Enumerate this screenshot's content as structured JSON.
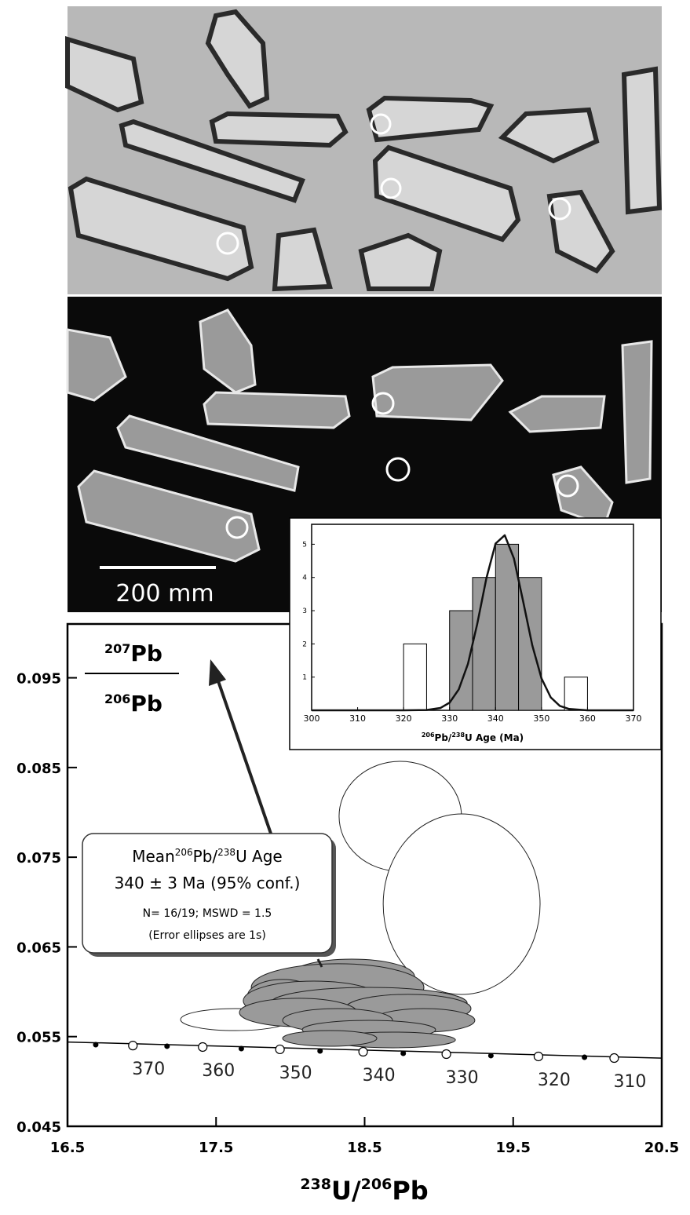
{
  "figure": {
    "scale_bar_label": "200 mm"
  },
  "chart_data": [
    {
      "type": "concordia",
      "y_label": {
        "top_mass": "207",
        "top_element": "Pb",
        "bottom_mass": "206",
        "bottom_element": "Pb"
      },
      "x_label": {
        "mass1": "238",
        "part1": "U/",
        "mass2": "206",
        "part2": "Pb"
      },
      "xlim": [
        16.5,
        20.5
      ],
      "xticks": [
        16.5,
        17.5,
        18.5,
        19.5,
        20.5
      ],
      "ylim": [
        0.045,
        0.101
      ],
      "yticks": [
        0.045,
        0.055,
        0.065,
        0.075,
        0.085,
        0.095
      ],
      "concordia": {
        "x": [
          16.5,
          20.5
        ],
        "y": [
          0.0544,
          0.0526
        ],
        "color": "#000000"
      },
      "age_markers": {
        "x": [
          16.94,
          17.41,
          17.93,
          18.49,
          19.05,
          19.67,
          20.18
        ],
        "y": [
          0.054,
          0.05384,
          0.05358,
          0.05331,
          0.05305,
          0.05279,
          0.05261
        ],
        "labels": [
          "370",
          "360",
          "350",
          "340",
          "330",
          "320",
          "310"
        ]
      },
      "minor_markers": {
        "x": [
          16.69,
          17.17,
          17.67,
          18.2,
          18.76,
          19.35,
          19.98
        ],
        "y": [
          0.0541,
          0.05393,
          0.05366,
          0.0534,
          0.05314,
          0.05288,
          0.0527
        ]
      },
      "ellipses": [
        {
          "x": 18.74,
          "y": 0.07956,
          "rx": 0.412,
          "ry": 0.00613,
          "fill": "#ffffff"
        },
        {
          "x": 19.153,
          "y": 0.06976,
          "rx": 0.528,
          "ry": 0.01006,
          "fill": "#ffffff"
        },
        {
          "x": 17.631,
          "y": 0.0569,
          "rx": 0.37,
          "ry": 0.00123,
          "fill": "#ffffff"
        },
        {
          "x": 18.413,
          "y": 0.06171,
          "rx": 0.423,
          "ry": 0.00193,
          "fill": "#9a9a9a"
        },
        {
          "x": 18.318,
          "y": 0.06049,
          "rx": 0.581,
          "ry": 0.00263,
          "fill": "#9a9a9a"
        },
        {
          "x": 17.948,
          "y": 0.05944,
          "rx": 0.238,
          "ry": 0.00193,
          "fill": "#9a9a9a"
        },
        {
          "x": 18.159,
          "y": 0.059,
          "rx": 0.476,
          "ry": 0.00219,
          "fill": "#9a9a9a"
        },
        {
          "x": 18.529,
          "y": 0.05874,
          "rx": 0.661,
          "ry": 0.00175,
          "fill": "#9a9a9a"
        },
        {
          "x": 18.793,
          "y": 0.05813,
          "rx": 0.423,
          "ry": 0.00158,
          "fill": "#9a9a9a"
        },
        {
          "x": 18.053,
          "y": 0.05769,
          "rx": 0.396,
          "ry": 0.00158,
          "fill": "#9a9a9a"
        },
        {
          "x": 18.899,
          "y": 0.05681,
          "rx": 0.343,
          "ry": 0.00131,
          "fill": "#9a9a9a"
        },
        {
          "x": 18.318,
          "y": 0.05681,
          "rx": 0.37,
          "ry": 0.00131,
          "fill": "#9a9a9a"
        },
        {
          "x": 18.529,
          "y": 0.05576,
          "rx": 0.449,
          "ry": 0.00105,
          "fill": "#9a9a9a"
        },
        {
          "x": 18.688,
          "y": 0.05463,
          "rx": 0.423,
          "ry": 0.000875,
          "fill": "#9a9a9a"
        },
        {
          "x": 18.265,
          "y": 0.0548,
          "rx": 0.317,
          "ry": 0.000875,
          "fill": "#9a9a9a"
        }
      ],
      "annotation": {
        "line1_prefix": "Mean",
        "line1_mass1": "206",
        "line1_mid": "Pb/",
        "line1_mass2": "238",
        "line1_suffix": "U Age",
        "line2": "340 ± 3 Ma (95% conf.)",
        "line3": "N=  16/19; MSWD = 1.5",
        "line4": "(Error ellipses are 1s)"
      }
    },
    {
      "type": "histogram",
      "bins": [
        320,
        325,
        330,
        335,
        340,
        345,
        350,
        355,
        360
      ],
      "counts": [
        2,
        0,
        3,
        4,
        5,
        4,
        0,
        1
      ],
      "colors": [
        "#ffffff",
        "#ffffff",
        "#9a9a9a",
        "#9a9a9a",
        "#9a9a9a",
        "#9a9a9a",
        "#ffffff",
        "#ffffff"
      ],
      "xlim": [
        300,
        370
      ],
      "xticks": [
        300,
        310,
        320,
        330,
        340,
        350,
        360,
        370
      ],
      "ylim": [
        0,
        5.6
      ],
      "yticks": [
        1,
        2,
        3,
        4,
        5
      ],
      "curve": {
        "x": [
          300,
          315,
          320,
          325,
          328,
          330,
          332,
          334,
          336,
          338,
          340,
          342,
          344,
          346,
          348,
          350,
          352,
          354,
          356,
          360,
          365,
          370
        ],
        "y": [
          0,
          0,
          0,
          0.009,
          0.07,
          0.23,
          0.63,
          1.4,
          2.59,
          3.97,
          5.02,
          5.27,
          4.57,
          3.28,
          1.95,
          0.96,
          0.39,
          0.13,
          0.04,
          0,
          0,
          0
        ]
      },
      "x_label": {
        "mass1": "206",
        "part1": "Pb/",
        "mass2": "238",
        "part2": "U Age (Ma)"
      }
    }
  ]
}
